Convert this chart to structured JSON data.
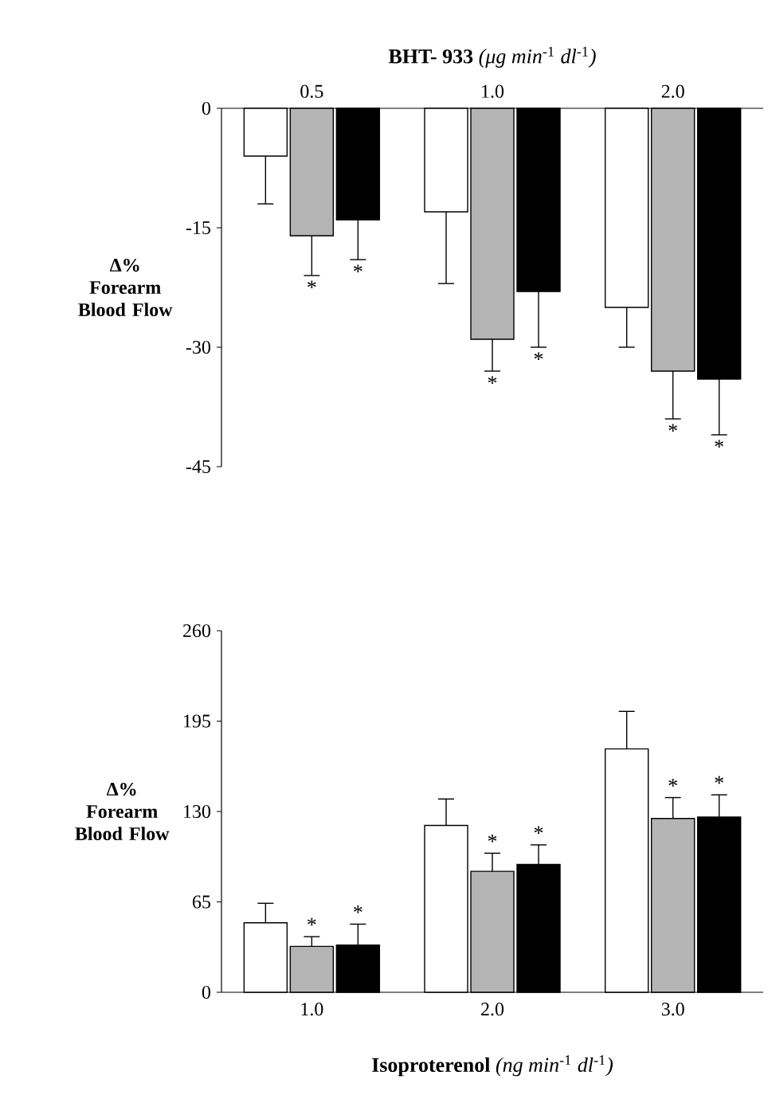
{
  "chart_data": [
    {
      "type": "bar",
      "title": "**BHT- 933** *(μg min*$^{-1}$ *dl*$^{-1}$*)*",
      "ylabel": "Δ% Forearm Blood Flow",
      "categories": [
        "0.5",
        "1.0",
        "2.0"
      ],
      "ylim": [
        -45,
        0
      ],
      "yticks": [
        0,
        -15,
        -30,
        -45
      ],
      "series": [
        {
          "color": "#ffffff",
          "values": [
            -6,
            -13,
            -25
          ],
          "errors": [
            [
              -12,
              -6
            ],
            [
              -22,
              -13
            ],
            [
              -30,
              -25
            ]
          ]
        },
        {
          "color": "#b4b4b4",
          "values": [
            -16,
            -29,
            -33
          ],
          "errors": [
            [
              -21,
              -16
            ],
            [
              -33,
              -29
            ],
            [
              -39,
              -33
            ]
          ],
          "value_labels": [
            "*",
            "*",
            "*"
          ]
        },
        {
          "color": "#000000",
          "values": [
            -14,
            -23,
            -34
          ],
          "errors": [
            [
              -19,
              -14
            ],
            [
              -30,
              -23
            ],
            [
              -41,
              -34
            ]
          ],
          "value_labels": [
            "*",
            "*",
            "*"
          ]
        }
      ]
    },
    {
      "type": "bar",
      "xlabel": "**Isoproterenol** *(ng min*$^{-1}$ *dl*$^{-1}$*)*",
      "ylabel": "Δ% Forearm Blood Flow",
      "categories": [
        "1.0",
        "2.0",
        "3.0"
      ],
      "ylim": [
        0,
        260
      ],
      "yticks": [
        0,
        65,
        130,
        195,
        260
      ],
      "series": [
        {
          "color": "#ffffff",
          "values": [
            50,
            120,
            175
          ],
          "errors": [
            [
              50,
              64
            ],
            [
              120,
              139
            ],
            [
              175,
              202
            ]
          ]
        },
        {
          "color": "#b4b4b4",
          "values": [
            33,
            87,
            125
          ],
          "errors": [
            [
              33,
              40
            ],
            [
              87,
              100
            ],
            [
              125,
              140
            ]
          ],
          "value_labels": [
            "*",
            "*",
            "*"
          ]
        },
        {
          "color": "#000000",
          "values": [
            34,
            92,
            126
          ],
          "errors": [
            [
              34,
              49
            ],
            [
              92,
              106
            ],
            [
              126,
              142
            ]
          ],
          "value_labels": [
            "*",
            "*",
            "*"
          ]
        }
      ]
    }
  ]
}
